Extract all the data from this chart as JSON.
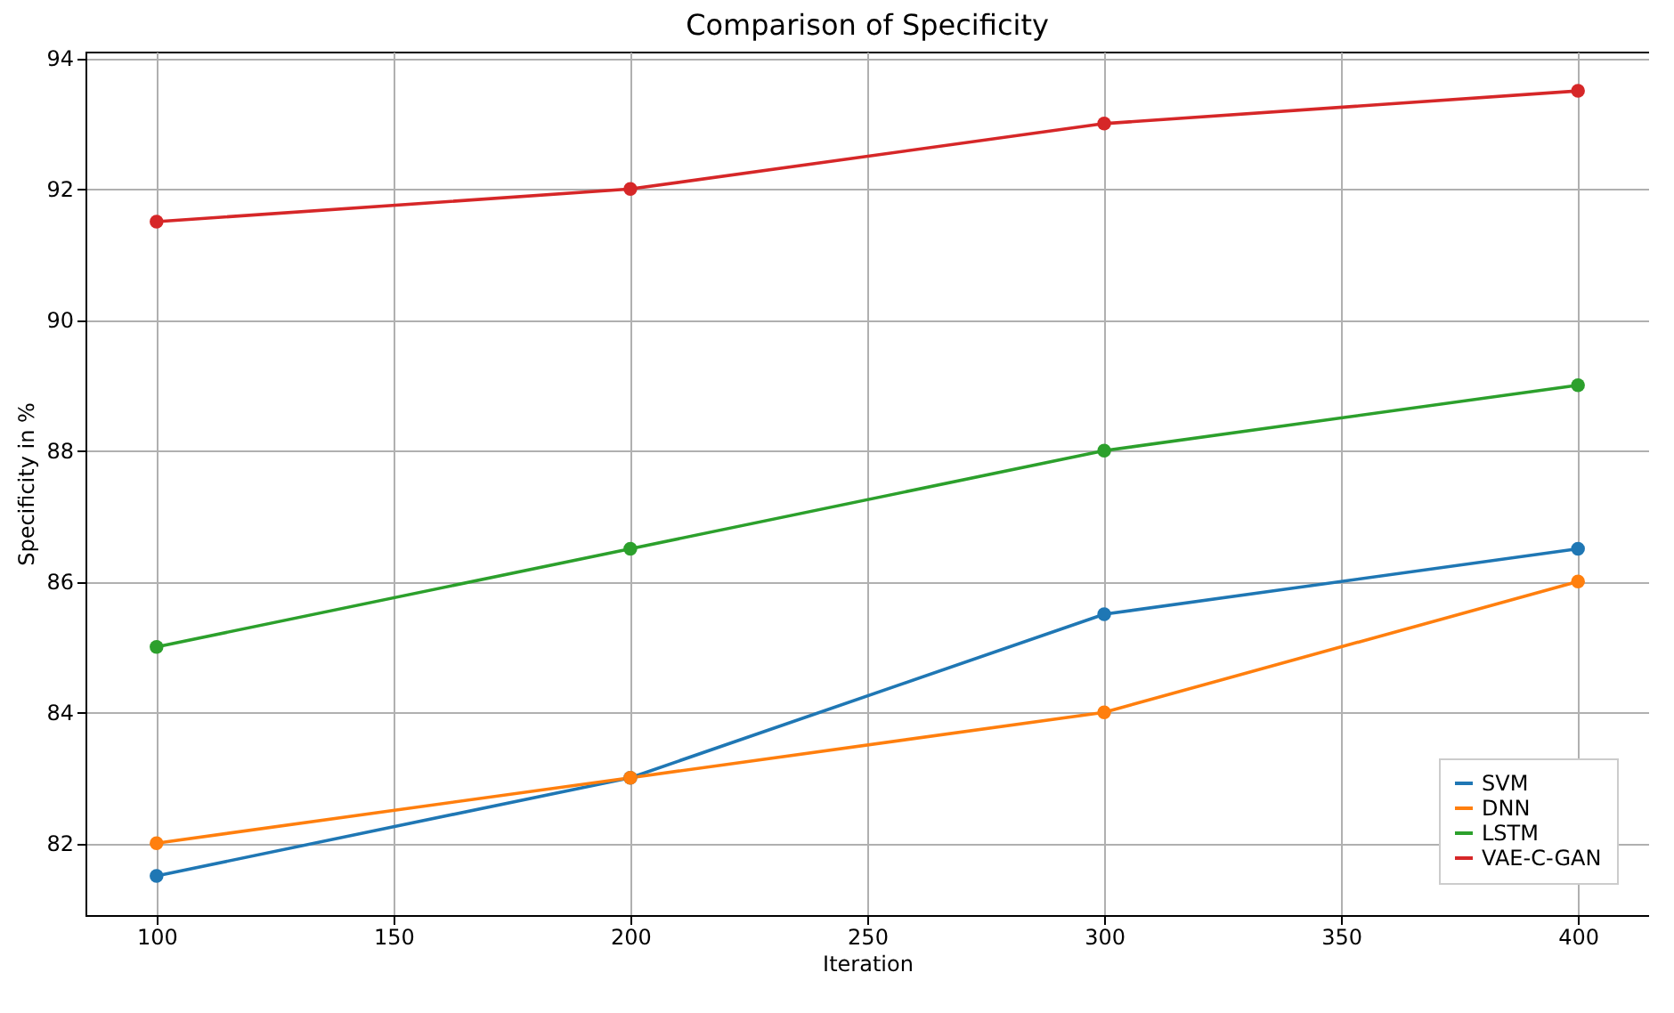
{
  "chart_data": {
    "type": "line",
    "title": "Comparison of Specificity",
    "xlabel": "Iteration",
    "ylabel": "Specificity in %",
    "x": [
      100,
      200,
      300,
      400
    ],
    "series": [
      {
        "name": "SVM",
        "color": "#1f77b4",
        "values": [
          81.5,
          83,
          85.5,
          86.5
        ]
      },
      {
        "name": "DNN",
        "color": "#ff7f0e",
        "values": [
          82,
          83,
          84,
          86
        ]
      },
      {
        "name": "LSTM",
        "color": "#2ca02c",
        "values": [
          85,
          86.5,
          88,
          89
        ]
      },
      {
        "name": "VAE-C-GAN",
        "color": "#d62728",
        "values": [
          91.5,
          92,
          93,
          93.5
        ]
      }
    ],
    "xlim": [
      85,
      415
    ],
    "xticks": [
      100,
      150,
      200,
      250,
      300,
      350,
      400
    ],
    "ylim": [
      80.9,
      94.1
    ],
    "yticks": [
      82,
      84,
      86,
      88,
      90,
      92,
      94
    ],
    "grid": true,
    "legend": "bottom right",
    "marker": "circle",
    "line_style": "solid"
  }
}
